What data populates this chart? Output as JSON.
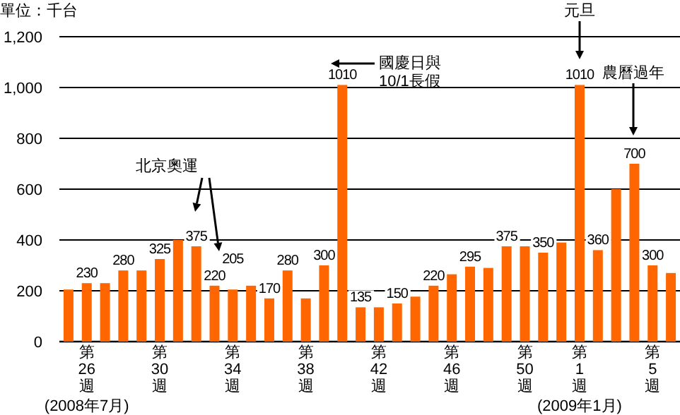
{
  "chart_data": {
    "type": "bar",
    "ylabel": "單位：千台",
    "categories": [
      null,
      "第26週",
      null,
      null,
      null,
      "第30週",
      null,
      null,
      null,
      "第34週",
      null,
      null,
      null,
      "第38週",
      null,
      null,
      null,
      "第42週",
      null,
      null,
      null,
      "第46週",
      null,
      null,
      null,
      "第50週",
      null,
      null,
      "第1週",
      null,
      null,
      null,
      "第5週",
      null
    ],
    "values": [
      205,
      230,
      230,
      280,
      280,
      325,
      400,
      375,
      220,
      205,
      220,
      170,
      280,
      170,
      300,
      1010,
      135,
      135,
      150,
      177,
      220,
      265,
      295,
      290,
      375,
      375,
      350,
      390,
      1010,
      360,
      600,
      700,
      300,
      270
    ],
    "value_labels": [
      null,
      "230",
      null,
      "280",
      null,
      "325",
      null,
      "375",
      "220",
      "205",
      null,
      "170",
      "280",
      null,
      "300",
      "1010",
      "135",
      null,
      "150",
      null,
      "220",
      null,
      "295",
      null,
      "375",
      null,
      "350",
      null,
      "1010",
      "360",
      null,
      "700",
      "300",
      null
    ],
    "color": "#ff6600",
    "ylim": [
      0,
      1200
    ],
    "yticks": [
      0,
      200,
      400,
      600,
      800,
      {
        "value": 1000,
        "label": "1,000"
      },
      {
        "value": 1200,
        "label": "1,200"
      }
    ],
    "grid": "y",
    "annotations": [
      "北京奧運",
      "國慶日與\n10/1長假",
      "元旦",
      "農曆過年",
      "(2008年7月)",
      "(2009年1月)"
    ]
  }
}
